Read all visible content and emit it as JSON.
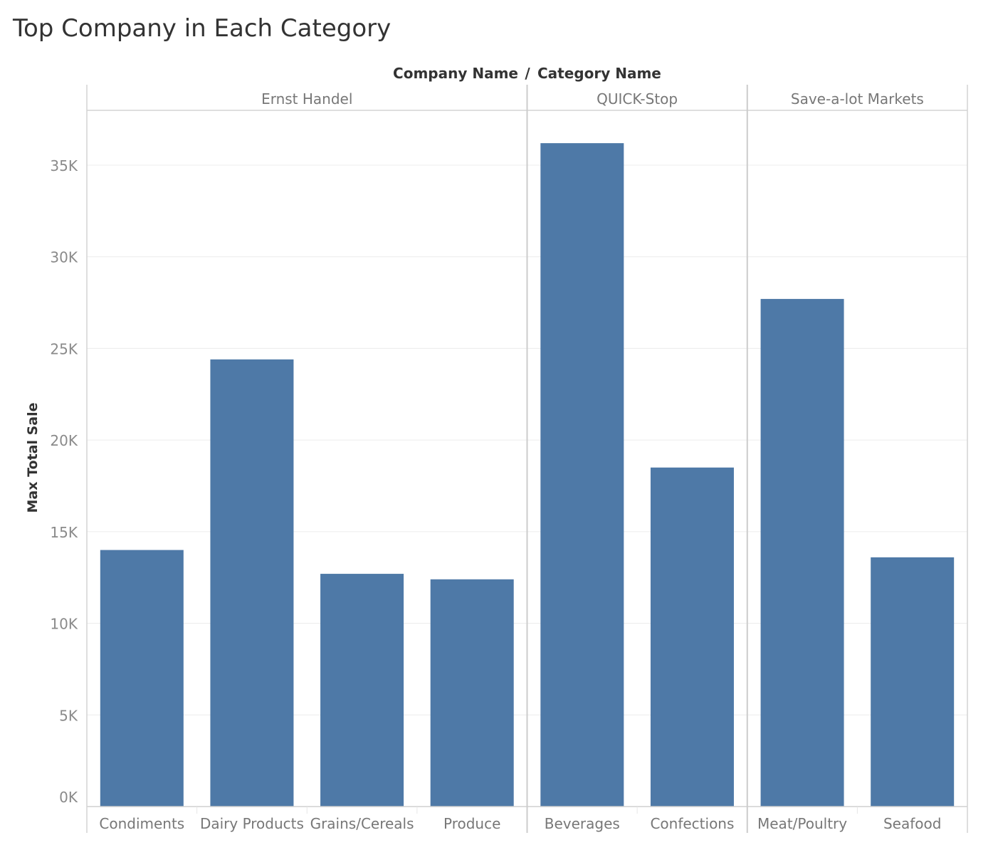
{
  "chart_title": "Top Company in Each Category",
  "chart_data": {
    "type": "bar",
    "title": "Top Company in Each Category",
    "header_title": "Company Name / Category Name",
    "header_part1": "Company Name",
    "header_separator": "/",
    "header_part2": "Category Name",
    "ylabel": "Max Total Sale",
    "xlabel": "",
    "ylim": [
      0,
      38000
    ],
    "yticks": [
      0,
      5000,
      10000,
      15000,
      20000,
      25000,
      30000,
      35000
    ],
    "ytick_labels": [
      "0K",
      "5K",
      "10K",
      "15K",
      "20K",
      "25K",
      "30K",
      "35K"
    ],
    "grid": true,
    "bar_color": "#4e79a7",
    "groups": [
      {
        "name": "Ernst Handel",
        "categories": [
          "Condiments",
          "Dairy Products",
          "Grains/Cereals",
          "Produce"
        ],
        "values": [
          14000,
          24400,
          12700,
          12400
        ]
      },
      {
        "name": "QUICK-Stop",
        "categories": [
          "Beverages",
          "Confections"
        ],
        "values": [
          36200,
          18500
        ]
      },
      {
        "name": "Save-a-lot Markets",
        "categories": [
          "Meat/Poultry",
          "Seafood"
        ],
        "values": [
          27700,
          13600
        ]
      }
    ]
  }
}
